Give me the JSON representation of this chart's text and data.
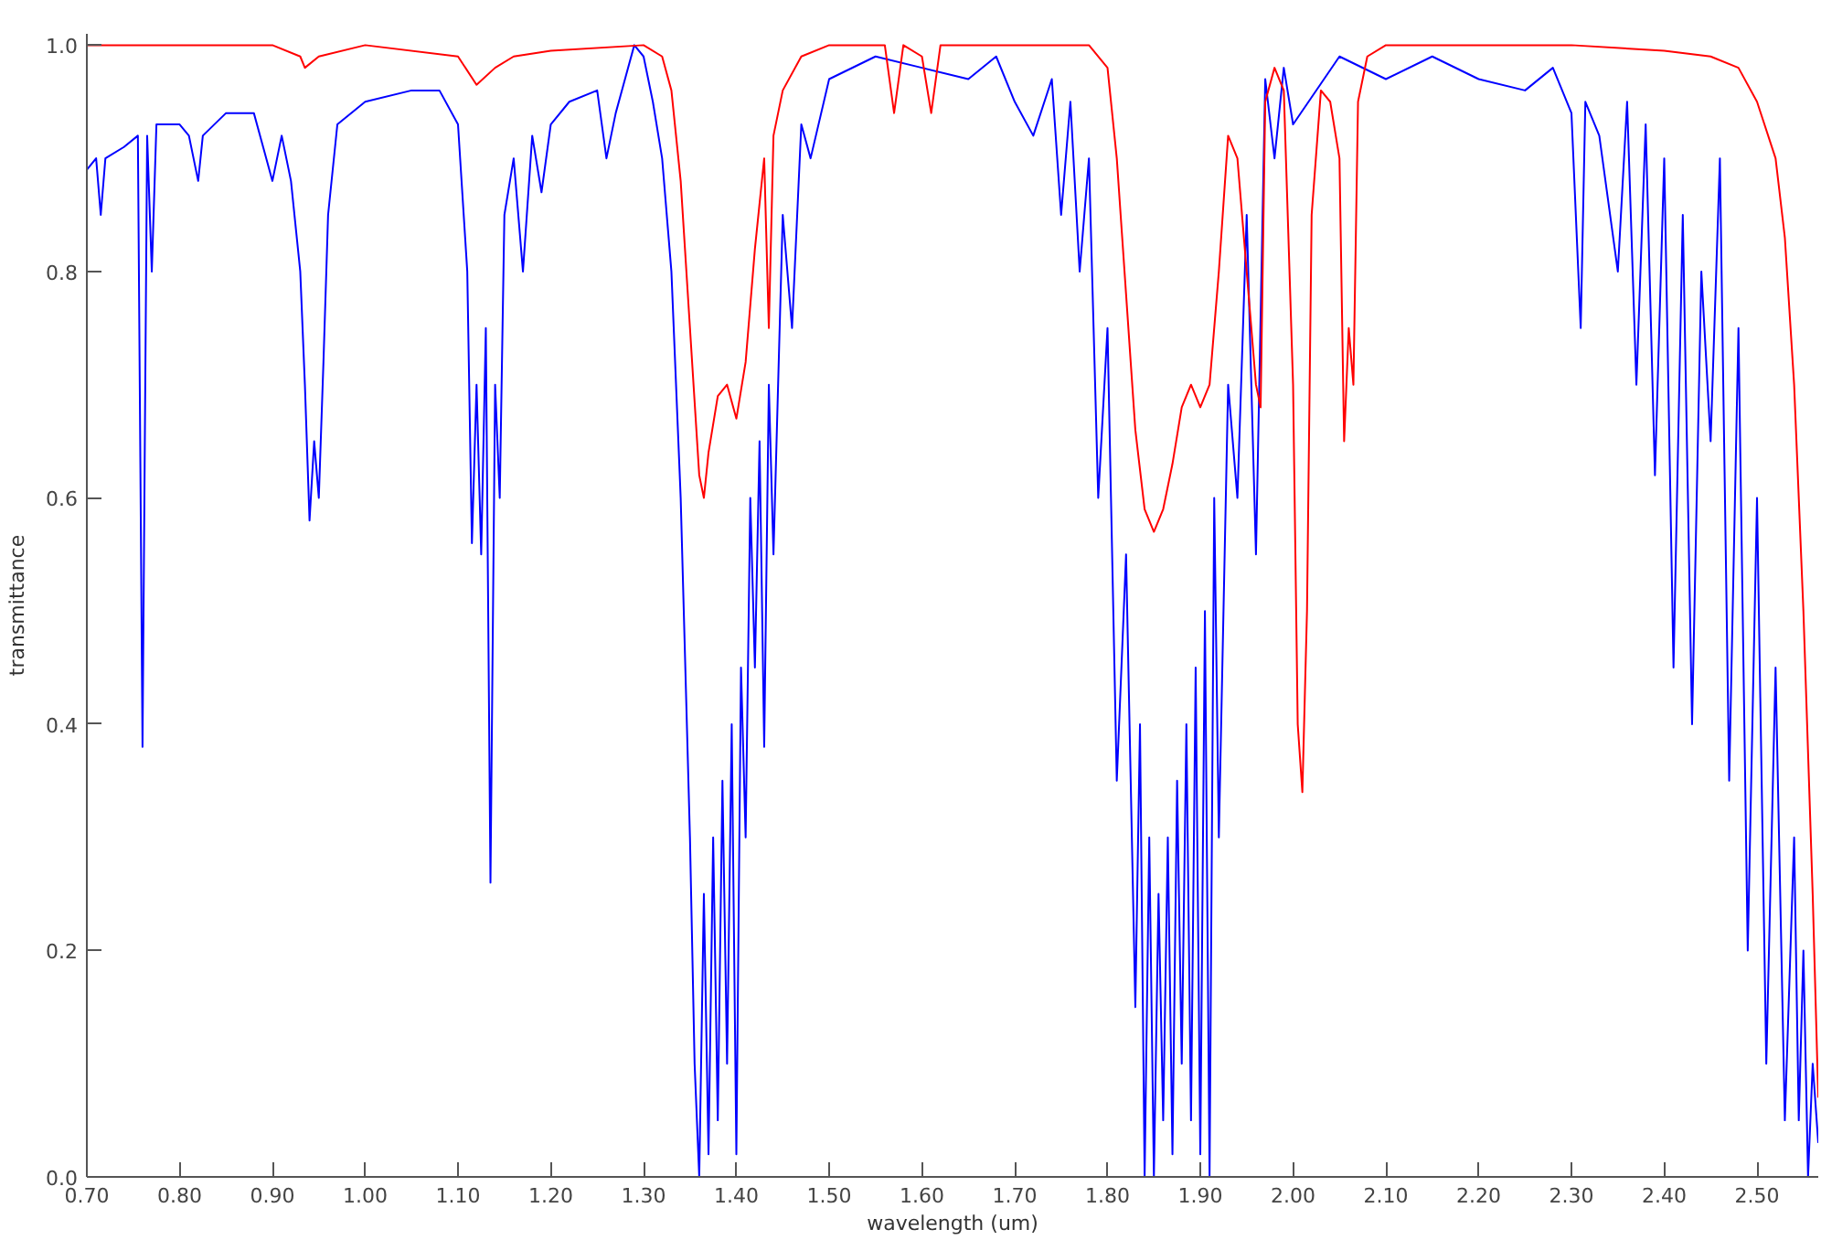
{
  "chart_data": {
    "type": "line",
    "xlabel": "wavelength (um)",
    "ylabel": "transmittance",
    "xlim": [
      0.7,
      2.566
    ],
    "ylim": [
      0,
      1.01
    ],
    "xticks": [
      {
        "value": 0.7,
        "label": "0.70"
      },
      {
        "value": 0.8,
        "label": "0.80"
      },
      {
        "value": 0.9,
        "label": "0.90"
      },
      {
        "value": 1.0,
        "label": "1.00"
      },
      {
        "value": 1.1,
        "label": "1.10"
      },
      {
        "value": 1.2,
        "label": "1.20"
      },
      {
        "value": 1.3,
        "label": "1.30"
      },
      {
        "value": 1.4,
        "label": "1.40"
      },
      {
        "value": 1.5,
        "label": "1.50"
      },
      {
        "value": 1.6,
        "label": "1.60"
      },
      {
        "value": 1.7,
        "label": "1.70"
      },
      {
        "value": 1.8,
        "label": "1.80"
      },
      {
        "value": 1.9,
        "label": "1.90"
      },
      {
        "value": 2.0,
        "label": "2.00"
      },
      {
        "value": 2.1,
        "label": "2.10"
      },
      {
        "value": 2.2,
        "label": "2.20"
      },
      {
        "value": 2.3,
        "label": "2.30"
      },
      {
        "value": 2.4,
        "label": "2.40"
      },
      {
        "value": 2.5,
        "label": "2.50"
      }
    ],
    "yticks": [
      {
        "value": 0,
        "label": "0.0"
      },
      {
        "value": 0.2,
        "label": "0.2"
      },
      {
        "value": 0.4,
        "label": "0.4"
      },
      {
        "value": 0.6,
        "label": "0.6"
      },
      {
        "value": 0.8,
        "label": "0.8"
      },
      {
        "value": 1.0,
        "label": "1.0"
      }
    ],
    "series": [
      {
        "color": "#0000ff",
        "x": [
          0.7,
          0.71,
          0.715,
          0.72,
          0.74,
          0.755,
          0.76,
          0.765,
          0.77,
          0.775,
          0.8,
          0.81,
          0.82,
          0.825,
          0.85,
          0.88,
          0.89,
          0.9,
          0.91,
          0.92,
          0.93,
          0.935,
          0.94,
          0.945,
          0.95,
          0.955,
          0.96,
          0.97,
          1.0,
          1.05,
          1.08,
          1.1,
          1.11,
          1.115,
          1.12,
          1.125,
          1.13,
          1.135,
          1.14,
          1.145,
          1.15,
          1.16,
          1.17,
          1.18,
          1.19,
          1.2,
          1.22,
          1.25,
          1.26,
          1.27,
          1.28,
          1.29,
          1.3,
          1.31,
          1.32,
          1.33,
          1.34,
          1.35,
          1.355,
          1.36,
          1.365,
          1.37,
          1.375,
          1.38,
          1.385,
          1.39,
          1.395,
          1.4,
          1.405,
          1.41,
          1.415,
          1.42,
          1.425,
          1.43,
          1.435,
          1.44,
          1.45,
          1.46,
          1.47,
          1.48,
          1.5,
          1.55,
          1.6,
          1.65,
          1.68,
          1.7,
          1.72,
          1.74,
          1.75,
          1.76,
          1.77,
          1.78,
          1.79,
          1.8,
          1.81,
          1.82,
          1.83,
          1.835,
          1.84,
          1.845,
          1.85,
          1.855,
          1.86,
          1.865,
          1.87,
          1.875,
          1.88,
          1.885,
          1.89,
          1.895,
          1.9,
          1.905,
          1.91,
          1.915,
          1.92,
          1.93,
          1.94,
          1.95,
          1.96,
          1.97,
          1.98,
          1.99,
          2.0,
          2.05,
          2.1,
          2.15,
          2.2,
          2.25,
          2.28,
          2.3,
          2.31,
          2.315,
          2.33,
          2.35,
          2.36,
          2.37,
          2.38,
          2.39,
          2.4,
          2.41,
          2.42,
          2.43,
          2.44,
          2.45,
          2.46,
          2.47,
          2.48,
          2.49,
          2.5,
          2.51,
          2.52,
          2.53,
          2.54,
          2.545,
          2.55,
          2.555,
          2.56,
          2.566
        ],
        "values": [
          0.89,
          0.9,
          0.85,
          0.9,
          0.91,
          0.92,
          0.38,
          0.92,
          0.8,
          0.93,
          0.93,
          0.92,
          0.88,
          0.92,
          0.94,
          0.94,
          0.91,
          0.88,
          0.92,
          0.88,
          0.8,
          0.7,
          0.58,
          0.65,
          0.6,
          0.72,
          0.85,
          0.93,
          0.95,
          0.96,
          0.96,
          0.93,
          0.8,
          0.56,
          0.7,
          0.55,
          0.75,
          0.26,
          0.7,
          0.6,
          0.85,
          0.9,
          0.8,
          0.92,
          0.87,
          0.93,
          0.95,
          0.96,
          0.9,
          0.94,
          0.97,
          1.0,
          0.99,
          0.95,
          0.9,
          0.8,
          0.6,
          0.3,
          0.1,
          0.0,
          0.25,
          0.02,
          0.3,
          0.05,
          0.35,
          0.1,
          0.4,
          0.02,
          0.45,
          0.3,
          0.6,
          0.45,
          0.65,
          0.38,
          0.7,
          0.55,
          0.85,
          0.75,
          0.93,
          0.9,
          0.97,
          0.99,
          0.98,
          0.97,
          0.99,
          0.95,
          0.92,
          0.97,
          0.85,
          0.95,
          0.8,
          0.9,
          0.6,
          0.75,
          0.35,
          0.55,
          0.15,
          0.4,
          0.0,
          0.3,
          0.0,
          0.25,
          0.05,
          0.3,
          0.02,
          0.35,
          0.1,
          0.4,
          0.05,
          0.45,
          0.02,
          0.5,
          0.0,
          0.6,
          0.3,
          0.7,
          0.6,
          0.85,
          0.55,
          0.97,
          0.9,
          0.98,
          0.93,
          0.99,
          0.97,
          0.99,
          0.97,
          0.96,
          0.98,
          0.94,
          0.75,
          0.95,
          0.92,
          0.8,
          0.95,
          0.7,
          0.93,
          0.62,
          0.9,
          0.45,
          0.85,
          0.4,
          0.8,
          0.65,
          0.9,
          0.35,
          0.75,
          0.2,
          0.6,
          0.1,
          0.45,
          0.05,
          0.3,
          0.05,
          0.2,
          0.0,
          0.1,
          0.03
        ]
      },
      {
        "color": "#ff0000",
        "x": [
          0.7,
          0.9,
          0.93,
          0.935,
          0.95,
          1.0,
          1.1,
          1.12,
          1.14,
          1.16,
          1.2,
          1.3,
          1.32,
          1.33,
          1.34,
          1.35,
          1.36,
          1.365,
          1.37,
          1.38,
          1.39,
          1.4,
          1.41,
          1.42,
          1.43,
          1.435,
          1.44,
          1.45,
          1.47,
          1.5,
          1.56,
          1.57,
          1.58,
          1.6,
          1.61,
          1.62,
          1.7,
          1.78,
          1.8,
          1.81,
          1.82,
          1.83,
          1.84,
          1.85,
          1.86,
          1.87,
          1.88,
          1.89,
          1.9,
          1.91,
          1.92,
          1.93,
          1.94,
          1.95,
          1.96,
          1.965,
          1.97,
          1.98,
          1.99,
          2.0,
          2.005,
          2.01,
          2.015,
          2.02,
          2.03,
          2.04,
          2.05,
          2.055,
          2.06,
          2.065,
          2.07,
          2.08,
          2.1,
          2.3,
          2.4,
          2.45,
          2.48,
          2.5,
          2.52,
          2.53,
          2.54,
          2.55,
          2.56,
          2.566
        ],
        "values": [
          1.0,
          1.0,
          0.99,
          0.98,
          0.99,
          1.0,
          0.99,
          0.965,
          0.98,
          0.99,
          0.995,
          1.0,
          0.99,
          0.96,
          0.88,
          0.75,
          0.62,
          0.6,
          0.64,
          0.69,
          0.7,
          0.67,
          0.72,
          0.82,
          0.9,
          0.75,
          0.92,
          0.96,
          0.99,
          1.0,
          1.0,
          0.94,
          1.0,
          0.99,
          0.94,
          1.0,
          1.0,
          1.0,
          0.98,
          0.9,
          0.78,
          0.66,
          0.59,
          0.57,
          0.59,
          0.63,
          0.68,
          0.7,
          0.68,
          0.7,
          0.8,
          0.92,
          0.9,
          0.8,
          0.7,
          0.68,
          0.95,
          0.98,
          0.96,
          0.7,
          0.4,
          0.34,
          0.5,
          0.85,
          0.96,
          0.95,
          0.9,
          0.65,
          0.75,
          0.7,
          0.95,
          0.99,
          1.0,
          1.0,
          0.995,
          0.99,
          0.98,
          0.95,
          0.9,
          0.83,
          0.7,
          0.5,
          0.25,
          0.07
        ]
      }
    ]
  }
}
